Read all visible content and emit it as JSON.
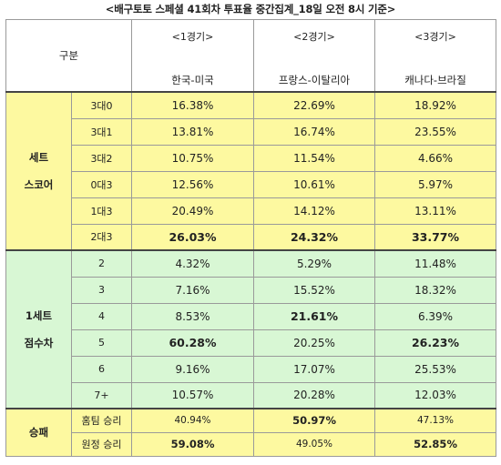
{
  "title": "<배구토토 스페셜 41회차 투표율 중간집계_18일 오전 8시 기준>",
  "header": {
    "gubun": "구분",
    "games": [
      {
        "num": "<1경기>",
        "match": "한국-미국"
      },
      {
        "num": "<2경기>",
        "match": "프랑스-이탈리아"
      },
      {
        "num": "<3경기>",
        "match": "캐나다-브라질"
      }
    ]
  },
  "sections": [
    {
      "label_lines": [
        "세트",
        "스코어"
      ],
      "rows": [
        {
          "label": "3대0",
          "values": [
            "16.38%",
            "22.69%",
            "18.92%"
          ],
          "bold": [
            false,
            false,
            false
          ]
        },
        {
          "label": "3대1",
          "values": [
            "13.81%",
            "16.74%",
            "23.55%"
          ],
          "bold": [
            false,
            false,
            false
          ]
        },
        {
          "label": "3대2",
          "values": [
            "10.75%",
            "11.54%",
            "4.66%"
          ],
          "bold": [
            false,
            false,
            false
          ]
        },
        {
          "label": "0대3",
          "values": [
            "12.56%",
            "10.61%",
            "5.97%"
          ],
          "bold": [
            false,
            false,
            false
          ]
        },
        {
          "label": "1대3",
          "values": [
            "20.49%",
            "14.12%",
            "13.11%"
          ],
          "bold": [
            false,
            false,
            false
          ]
        },
        {
          "label": "2대3",
          "values": [
            "26.03%",
            "24.32%",
            "33.77%"
          ],
          "bold": [
            true,
            true,
            true
          ]
        }
      ]
    },
    {
      "label_lines": [
        "1세트",
        "점수차"
      ],
      "rows": [
        {
          "label": "2",
          "values": [
            "4.32%",
            "5.29%",
            "11.48%"
          ],
          "bold": [
            false,
            false,
            false
          ]
        },
        {
          "label": "3",
          "values": [
            "7.16%",
            "15.52%",
            "18.32%"
          ],
          "bold": [
            false,
            false,
            false
          ]
        },
        {
          "label": "4",
          "values": [
            "8.53%",
            "21.61%",
            "6.39%"
          ],
          "bold": [
            false,
            true,
            false
          ]
        },
        {
          "label": "5",
          "values": [
            "60.28%",
            "20.25%",
            "26.23%"
          ],
          "bold": [
            true,
            false,
            true
          ]
        },
        {
          "label": "6",
          "values": [
            "9.16%",
            "17.07%",
            "25.53%"
          ],
          "bold": [
            false,
            false,
            false
          ]
        },
        {
          "label": "7+",
          "values": [
            "10.57%",
            "20.28%",
            "12.03%"
          ],
          "bold": [
            false,
            false,
            false
          ]
        }
      ]
    },
    {
      "label_lines": [
        "승패"
      ],
      "rows": [
        {
          "label": "홈팀 승리",
          "values": [
            "40.94%",
            "50.97%",
            "47.13%"
          ],
          "bold": [
            false,
            true,
            false
          ]
        },
        {
          "label": "원정 승리",
          "values": [
            "59.08%",
            "49.05%",
            "52.85%"
          ],
          "bold": [
            true,
            false,
            true
          ]
        }
      ]
    }
  ]
}
